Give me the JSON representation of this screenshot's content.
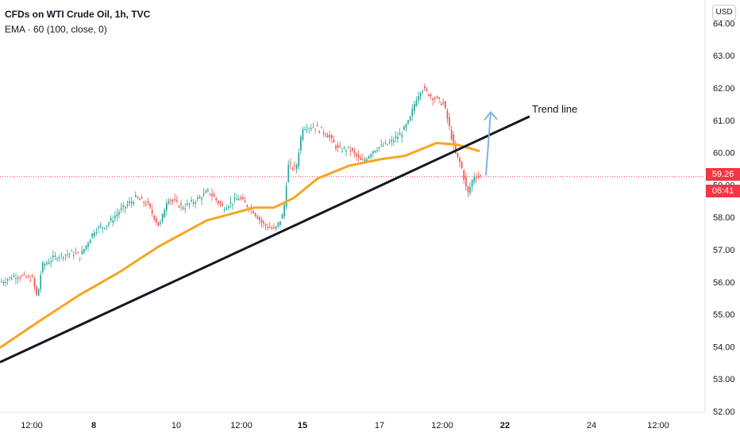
{
  "header": {
    "title": "CFDs on WTI Crude Oil, 1h, TVC",
    "indicator": "EMA · 60 (100, close, 0)"
  },
  "currency_button": "USD",
  "last_price_badge": "59.26",
  "countdown_badge": "06:41",
  "annotation": {
    "trend_line_label": "Trend line"
  },
  "colors": {
    "bull": "#26a69a",
    "bear": "#ef5350",
    "ema": "#f5a623",
    "trend": "#131722",
    "arrow": "#7fb3e0",
    "price_line": "#f23645"
  },
  "chart_data": {
    "type": "candlestick",
    "y_ticks": [
      "52.00",
      "53.00",
      "54.00",
      "55.00",
      "56.00",
      "57.00",
      "58.00",
      "59.00",
      "60.00",
      "61.00",
      "62.00",
      "63.00",
      "64.00"
    ],
    "x_ticks": [
      {
        "label": "12:00",
        "bold": false
      },
      {
        "label": "8",
        "bold": true
      },
      {
        "label": "10",
        "bold": false
      },
      {
        "label": "12:00",
        "bold": false
      },
      {
        "label": "15",
        "bold": true
      },
      {
        "label": "17",
        "bold": false
      },
      {
        "label": "12:00",
        "bold": false
      },
      {
        "label": "22",
        "bold": true
      },
      {
        "label": "24",
        "bold": false
      },
      {
        "label": "12:00",
        "bold": false
      }
    ],
    "ylim": [
      51.95,
      64.45
    ],
    "last_price": 59.26,
    "close_path": [
      [
        0,
        56.0
      ],
      [
        18,
        56.2
      ],
      [
        40,
        56.1
      ],
      [
        46,
        55.5
      ],
      [
        52,
        56.5
      ],
      [
        70,
        56.8
      ],
      [
        90,
        56.9
      ],
      [
        100,
        56.8
      ],
      [
        118,
        57.6
      ],
      [
        135,
        57.8
      ],
      [
        150,
        58.2
      ],
      [
        170,
        58.6
      ],
      [
        185,
        58.4
      ],
      [
        200,
        57.7
      ],
      [
        210,
        58.6
      ],
      [
        230,
        58.3
      ],
      [
        250,
        58.6
      ],
      [
        262,
        58.8
      ],
      [
        280,
        58.3
      ],
      [
        300,
        58.6
      ],
      [
        318,
        58.2
      ],
      [
        330,
        57.8
      ],
      [
        345,
        57.6
      ],
      [
        356,
        58.1
      ],
      [
        362,
        59.6
      ],
      [
        372,
        59.5
      ],
      [
        380,
        60.8
      ],
      [
        395,
        60.8
      ],
      [
        410,
        60.6
      ],
      [
        425,
        60.1
      ],
      [
        440,
        60.1
      ],
      [
        455,
        59.7
      ],
      [
        470,
        60.1
      ],
      [
        490,
        60.3
      ],
      [
        505,
        60.6
      ],
      [
        515,
        61.0
      ],
      [
        522,
        61.6
      ],
      [
        530,
        62.0
      ],
      [
        545,
        61.7
      ],
      [
        558,
        61.5
      ],
      [
        565,
        60.8
      ],
      [
        572,
        60.0
      ],
      [
        580,
        59.6
      ],
      [
        588,
        58.7
      ],
      [
        596,
        59.3
      ],
      [
        606,
        59.25
      ]
    ],
    "series": [
      {
        "name": "EMA · 60 (100, close, 0)",
        "points": [
          [
            0,
            53.97
          ],
          [
            50,
            54.8
          ],
          [
            100,
            55.6
          ],
          [
            150,
            56.3
          ],
          [
            200,
            57.1
          ],
          [
            260,
            57.9
          ],
          [
            320,
            58.3
          ],
          [
            345,
            58.3
          ],
          [
            370,
            58.6
          ],
          [
            400,
            59.2
          ],
          [
            440,
            59.6
          ],
          [
            480,
            59.8
          ],
          [
            510,
            59.9
          ],
          [
            550,
            60.3
          ],
          [
            575,
            60.25
          ],
          [
            604,
            60.05
          ]
        ]
      }
    ],
    "trend_line": {
      "x1": 0,
      "y1": 53.52,
      "x2": 667,
      "y2": 61.12
    },
    "arrow": {
      "x1": 612,
      "y1": 59.3,
      "x2": 618,
      "y2": 61.25
    }
  }
}
